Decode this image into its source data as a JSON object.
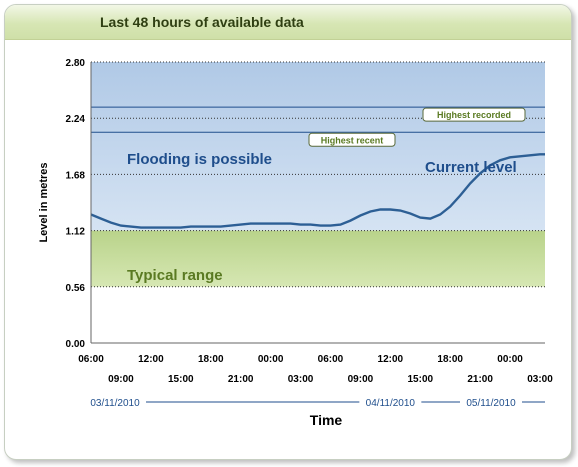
{
  "panel_title": "Last 48 hours of available data",
  "chart_data": {
    "type": "line",
    "title": "Last 48 hours of available data",
    "ylabel": "Level in metres",
    "xlabel": "Time",
    "ylim": [
      0,
      2.8
    ],
    "xlim_hours": [
      0,
      45.5
    ],
    "yticks": [
      "0.00",
      "0.56",
      "1.12",
      "1.68",
      "2.24",
      "2.80"
    ],
    "ytick_values": [
      0,
      0.56,
      1.12,
      1.68,
      2.24,
      2.8
    ],
    "xticks_top": [
      "06:00",
      "12:00",
      "18:00",
      "00:00",
      "06:00",
      "12:00",
      "18:00",
      "00:00"
    ],
    "xticks_top_hours": [
      0,
      6,
      12,
      18,
      24,
      30,
      36,
      42
    ],
    "xticks_bottom": [
      "09:00",
      "15:00",
      "21:00",
      "03:00",
      "09:00",
      "15:00",
      "21:00",
      "03:00"
    ],
    "xticks_bottom_hours": [
      3,
      9,
      15,
      21,
      27,
      33,
      39,
      45
    ],
    "dates": [
      {
        "label": "03/11/2010",
        "from_hours": -0.5,
        "to_hours": 18
      },
      {
        "label": "04/11/2010",
        "from_hours": 18,
        "to_hours": 42
      },
      {
        "label": "05/11/2010",
        "from_hours": 42,
        "to_hours": 45.5
      }
    ],
    "zones": [
      {
        "name": "Flooding is possible",
        "from": 1.12,
        "to": 2.8,
        "color": "#b8cfe9"
      },
      {
        "name": "Typical range",
        "from": 0.56,
        "to": 1.12,
        "color": "#c6dc96"
      }
    ],
    "reference_lines": [
      {
        "name": "Highest recorded",
        "value": 2.35
      },
      {
        "name": "Highest recent",
        "value": 2.1
      }
    ],
    "series": [
      {
        "name": "Current level",
        "color": "#2d5f95",
        "points": [
          [
            0,
            1.28
          ],
          [
            1,
            1.24
          ],
          [
            2,
            1.2
          ],
          [
            3,
            1.17
          ],
          [
            4,
            1.16
          ],
          [
            5,
            1.15
          ],
          [
            6,
            1.15
          ],
          [
            7,
            1.15
          ],
          [
            8,
            1.15
          ],
          [
            9,
            1.15
          ],
          [
            10,
            1.16
          ],
          [
            11,
            1.16
          ],
          [
            12,
            1.16
          ],
          [
            13,
            1.16
          ],
          [
            14,
            1.17
          ],
          [
            15,
            1.18
          ],
          [
            16,
            1.19
          ],
          [
            17,
            1.19
          ],
          [
            18,
            1.19
          ],
          [
            19,
            1.19
          ],
          [
            20,
            1.19
          ],
          [
            21,
            1.18
          ],
          [
            22,
            1.18
          ],
          [
            23,
            1.17
          ],
          [
            24,
            1.17
          ],
          [
            25,
            1.18
          ],
          [
            26,
            1.22
          ],
          [
            27,
            1.27
          ],
          [
            28,
            1.31
          ],
          [
            29,
            1.33
          ],
          [
            30,
            1.33
          ],
          [
            31,
            1.32
          ],
          [
            32,
            1.29
          ],
          [
            33,
            1.25
          ],
          [
            34,
            1.24
          ],
          [
            35,
            1.28
          ],
          [
            36,
            1.36
          ],
          [
            37,
            1.47
          ],
          [
            38,
            1.59
          ],
          [
            39,
            1.69
          ],
          [
            40,
            1.77
          ],
          [
            41,
            1.82
          ],
          [
            42,
            1.85
          ],
          [
            43,
            1.86
          ],
          [
            44,
            1.87
          ],
          [
            45,
            1.88
          ],
          [
            45.5,
            1.88
          ]
        ]
      }
    ]
  }
}
